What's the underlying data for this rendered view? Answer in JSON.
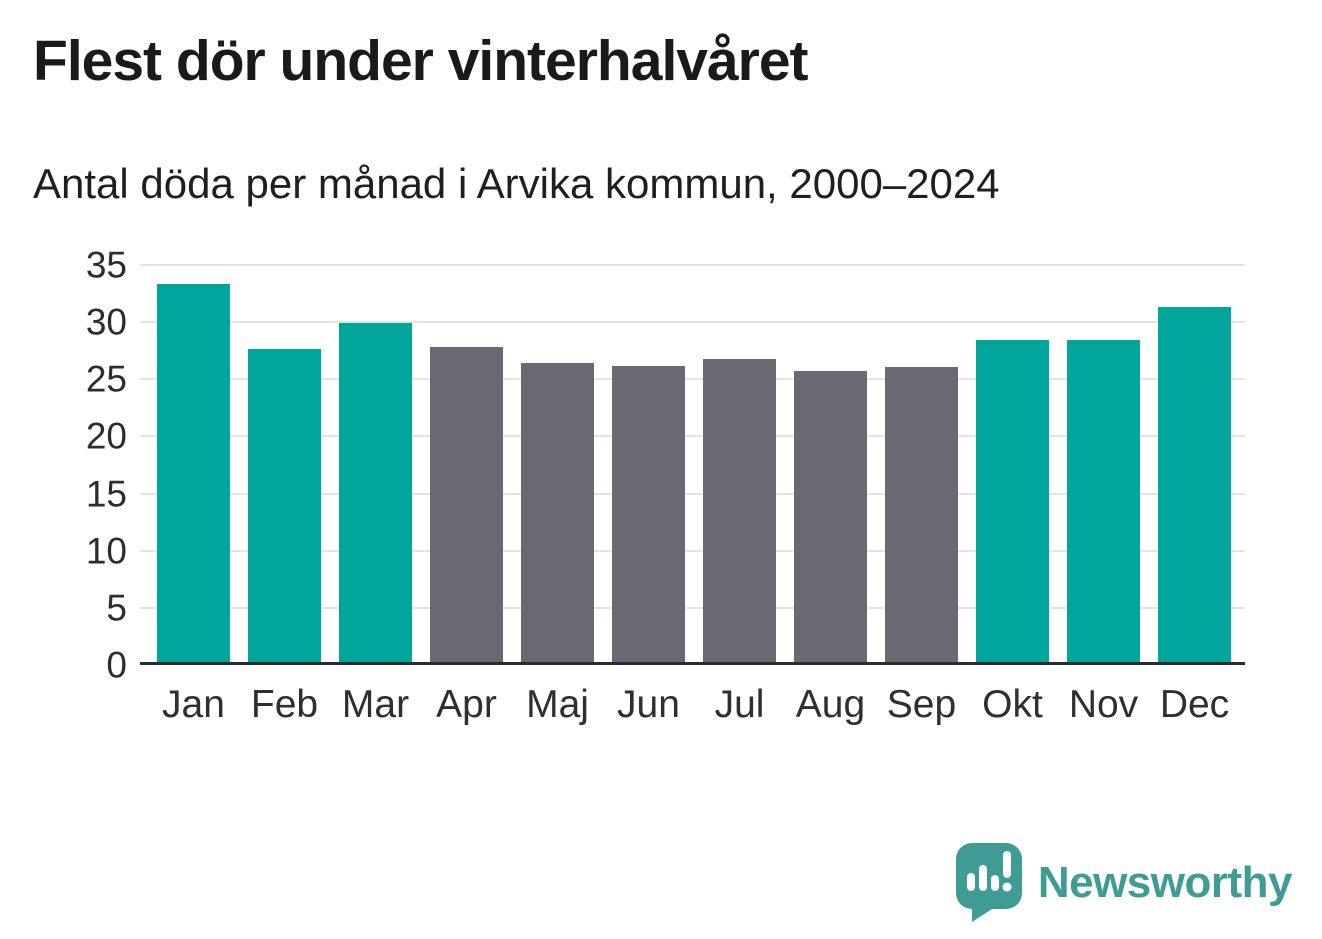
{
  "header": {
    "title": "Flest dör under vinterhalvåret",
    "subtitle": "Antal döda per månad i Arvika kommun, 2000–2024"
  },
  "chart_data": {
    "type": "bar",
    "title": "Flest dör under vinterhalvåret",
    "subtitle": "Antal döda per månad i Arvika kommun, 2000–2024",
    "categories": [
      "Jan",
      "Feb",
      "Mar",
      "Apr",
      "Maj",
      "Jun",
      "Jul",
      "Aug",
      "Sep",
      "Okt",
      "Nov",
      "Dec"
    ],
    "values": [
      33.1,
      27.4,
      29.7,
      27.6,
      26.2,
      25.9,
      26.5,
      25.5,
      25.8,
      28.2,
      28.2,
      31.1
    ],
    "bar_color_roles": [
      "teal",
      "teal",
      "teal",
      "gray",
      "gray",
      "gray",
      "gray",
      "gray",
      "gray",
      "teal",
      "teal",
      "teal"
    ],
    "colors": {
      "teal": "#00a69b",
      "gray": "#6a6973",
      "grid": "#e4e4e4",
      "axis": "#2b2b2b"
    },
    "xlabel": "",
    "ylabel": "",
    "ylim": [
      0,
      35
    ],
    "yticks": [
      0,
      5,
      10,
      15,
      20,
      25,
      30,
      35
    ],
    "grid": true,
    "legend": false
  },
  "footer": {
    "brand": "Newsworthy",
    "logo_color": "#3e9c95",
    "logo_icon": "bar-chart-exclamation-speech-bubble"
  }
}
